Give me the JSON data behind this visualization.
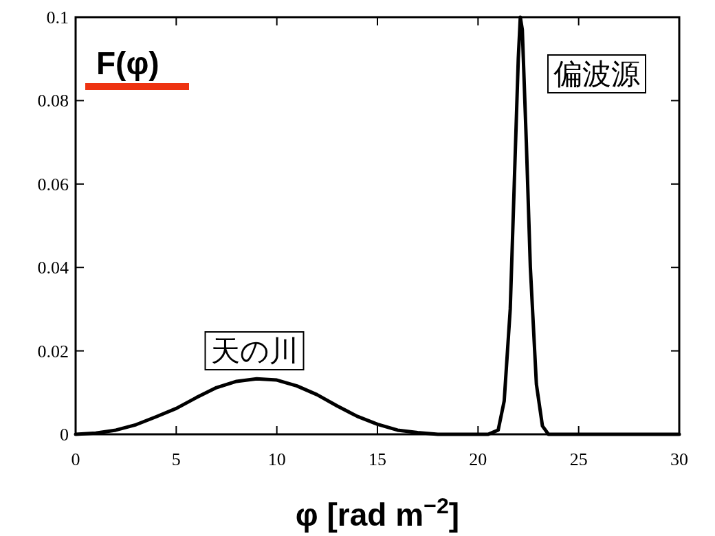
{
  "chart_data": {
    "type": "line",
    "ylabel": "F(φ)",
    "xlabel": "φ [rad m$^{−2}$]",
    "x": [
      0,
      1,
      2,
      3,
      4,
      5,
      6,
      7,
      8,
      9,
      10,
      11,
      12,
      13,
      14,
      15,
      16,
      17,
      18,
      20,
      20.5,
      21,
      21.3,
      21.6,
      21.8,
      22,
      22.1,
      22.2,
      22.4,
      22.6,
      22.9,
      23.2,
      23.5,
      24,
      30
    ],
    "series": [
      {
        "color": "#000000",
        "values": [
          0,
          0.0003,
          0.001,
          0.0023,
          0.0042,
          0.0062,
          0.0088,
          0.0112,
          0.0127,
          0.0133,
          0.013,
          0.0116,
          0.0095,
          0.0068,
          0.0043,
          0.0024,
          0.001,
          0.0004,
          0,
          0,
          0,
          0.001,
          0.008,
          0.03,
          0.06,
          0.09,
          0.1,
          0.097,
          0.07,
          0.04,
          0.012,
          0.002,
          0,
          0,
          0
        ]
      }
    ],
    "xlim": [
      0,
      30
    ],
    "ylim": [
      0,
      0.1
    ],
    "xticks": [
      0,
      5,
      10,
      15,
      20,
      25,
      30
    ],
    "yticks": [
      0,
      0.02,
      0.04,
      0.06,
      0.08,
      0.1
    ],
    "annotations": [
      "天の川",
      "偏波源"
    ],
    "grid": false
  }
}
